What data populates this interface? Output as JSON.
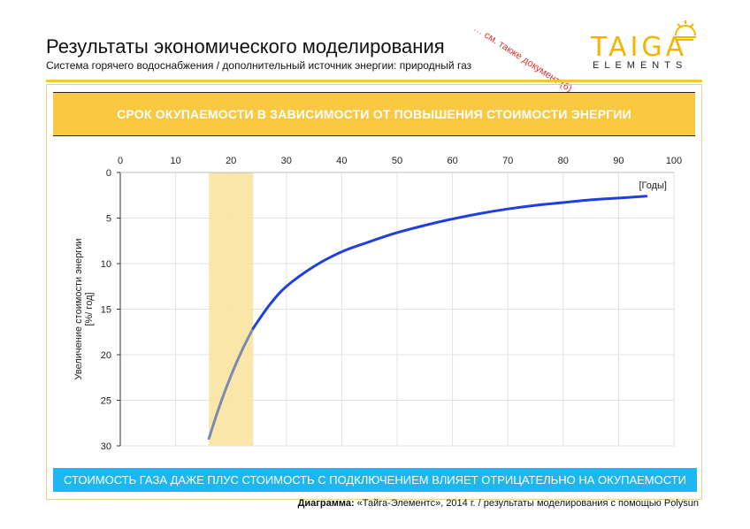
{
  "header": {
    "title": "Результаты экономического моделирования",
    "subtitle": "Система горячего водоснабжения / дополнительный источник энергии: природный газ",
    "note": "… см. также документ (6)"
  },
  "logo": {
    "main": "TAIGA",
    "sub": "ELEMENTS"
  },
  "banner_top": "СРОК ОКУПАЕМОСТИ В ЗАВИСИМОСТИ ОТ ПОВЫШЕНИЯ СТОИМОСТИ ЭНЕРГИИ",
  "banner_bottom": "СТОИМОСТЬ ГАЗА ДАЖЕ ПЛУС СТОИМОСТЬ С ПОДКЛЮЧЕНИЕМ ВЛИЯЕТ ОТРИЦАТЕЛЬНО НА ОКУПАЕМОСТИ",
  "footer": {
    "bold": "Диаграмма:",
    "text": " «Тайга-Элементс», 2014 г. / результаты моделирования с помощью Polysun"
  },
  "colors": {
    "accent": "#f8c840",
    "curve": "#1f3fe0",
    "curve_light": "#7a8ab0",
    "highlight": "#fbe3a0",
    "banner_blue": "#1eb6ef"
  },
  "chart_data": {
    "type": "line",
    "title": "",
    "xlabel": "[Годы]",
    "ylabel": "Увеличение стоимости энергии [%/ год]",
    "xlim": [
      0,
      100
    ],
    "ylim": [
      0,
      30
    ],
    "y_inverted": true,
    "x_axis_position": "top",
    "xticks": [
      "0",
      "10",
      "20",
      "30",
      "40",
      "50",
      "60",
      "70",
      "80",
      "90",
      "100"
    ],
    "yticks": [
      "0",
      "5",
      "10",
      "15",
      "20",
      "25",
      "30"
    ],
    "grid": true,
    "highlight_x_range": [
      16,
      24
    ],
    "series": [
      {
        "x": [
          16,
          18,
          20,
          22,
          24,
          27,
          30,
          35,
          40,
          45,
          50,
          55,
          60,
          65,
          70,
          75,
          80,
          85,
          90,
          95
        ],
        "y": [
          29.2,
          25.5,
          22.3,
          19.5,
          17.1,
          14.5,
          12.5,
          10.3,
          8.7,
          7.6,
          6.6,
          5.8,
          5.1,
          4.5,
          4.0,
          3.6,
          3.3,
          3.0,
          2.8,
          2.6
        ]
      }
    ]
  }
}
